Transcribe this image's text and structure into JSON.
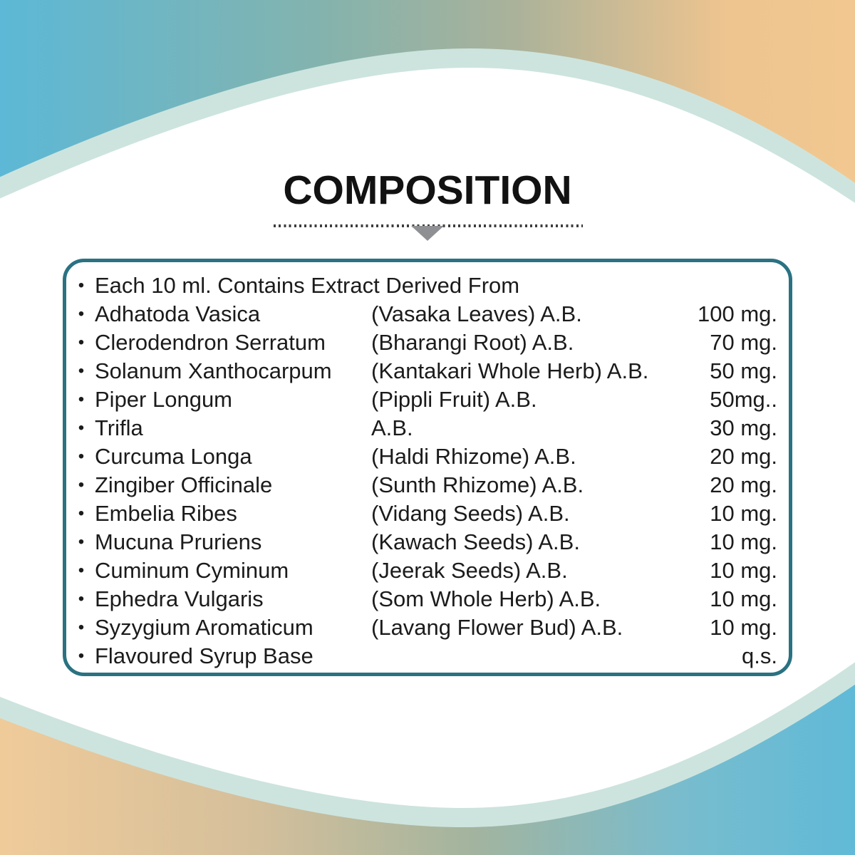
{
  "page": {
    "title": "COMPOSITION"
  },
  "colors": {
    "sky_blue": "#5cb8d6",
    "sage_green": "#a7b29b",
    "sand_orange": "#f2c890",
    "mint_accent": "#cde4de",
    "box_border_teal": "#2a7282",
    "arrow_gray": "#8e9093",
    "text": "#1b1b1b"
  },
  "composition": {
    "bullet": "•",
    "rows": [
      {
        "name": "Each 10 ml. Contains Extract Derived From",
        "source": "",
        "amount": ""
      },
      {
        "name": "Adhatoda Vasica",
        "source": "(Vasaka Leaves) A.B.",
        "amount": "100 mg."
      },
      {
        "name": "Clerodendron Serratum",
        "source": "(Bharangi Root) A.B.",
        "amount": "70 mg."
      },
      {
        "name": "Solanum Xanthocarpum",
        "source": "(Kantakari Whole Herb) A.B.",
        "amount": "50 mg."
      },
      {
        "name": "Piper Longum",
        "source": "(Pippli Fruit) A.B.",
        "amount": "50mg.."
      },
      {
        "name": "Trifla",
        "source": "A.B.",
        "amount": "30 mg."
      },
      {
        "name": "Curcuma Longa",
        "source": "(Haldi Rhizome) A.B.",
        "amount": "20 mg."
      },
      {
        "name": "Zingiber Officinale",
        "source": "(Sunth Rhizome) A.B.",
        "amount": "20 mg."
      },
      {
        "name": "Embelia Ribes",
        "source": "(Vidang Seeds) A.B.",
        "amount": "10 mg."
      },
      {
        "name": "Mucuna Pruriens",
        "source": "(Kawach Seeds) A.B.",
        "amount": "10 mg."
      },
      {
        "name": "Cuminum Cyminum",
        "source": "(Jeerak Seeds) A.B.",
        "amount": "10 mg."
      },
      {
        "name": "Ephedra Vulgaris",
        "source": "(Som Whole Herb) A.B.",
        "amount": "10 mg."
      },
      {
        "name": "Syzygium Aromaticum",
        "source": "(Lavang Flower Bud) A.B.",
        "amount": "10 mg."
      },
      {
        "name": "Flavoured Syrup Base",
        "source": "",
        "amount": "q.s."
      }
    ]
  }
}
